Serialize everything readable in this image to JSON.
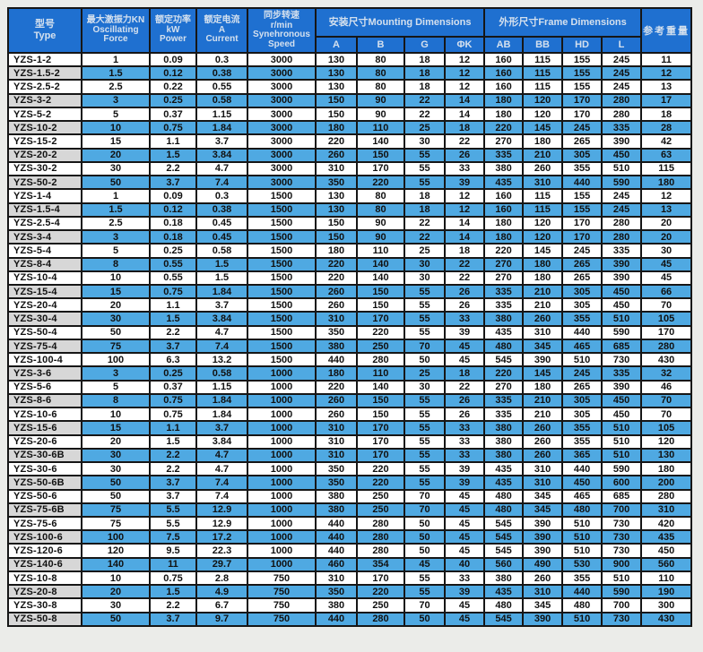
{
  "table": {
    "header": {
      "type": "型号\nType",
      "force": "最大激振力KN\nOscillating\nForce",
      "power": "额定功率\nkW\nPower",
      "current": "额定电流\nA\nCurrent",
      "speed": "同步转速\nr/min\nSynehronous\nSpeed",
      "mounting": "安装尺寸Mounting Dimensions",
      "frame": "外形尺寸Frame Dimensions",
      "weight": "参考重量",
      "mounting_cols": [
        "A",
        "B",
        "G",
        "ΦK"
      ],
      "frame_cols": [
        "AB",
        "BB",
        "HD",
        "L"
      ]
    },
    "rows": [
      [
        "YZS-1-2",
        "1",
        "0.09",
        "0.3",
        "3000",
        "130",
        "80",
        "18",
        "12",
        "160",
        "115",
        "155",
        "245",
        "11"
      ],
      [
        "YZS-1.5-2",
        "1.5",
        "0.12",
        "0.38",
        "3000",
        "130",
        "80",
        "18",
        "12",
        "160",
        "115",
        "155",
        "245",
        "12"
      ],
      [
        "YZS-2.5-2",
        "2.5",
        "0.22",
        "0.55",
        "3000",
        "130",
        "80",
        "18",
        "12",
        "160",
        "115",
        "155",
        "245",
        "13"
      ],
      [
        "YZS-3-2",
        "3",
        "0.25",
        "0.58",
        "3000",
        "150",
        "90",
        "22",
        "14",
        "180",
        "120",
        "170",
        "280",
        "17"
      ],
      [
        "YZS-5-2",
        "5",
        "0.37",
        "1.15",
        "3000",
        "150",
        "90",
        "22",
        "14",
        "180",
        "120",
        "170",
        "280",
        "18"
      ],
      [
        "YZS-10-2",
        "10",
        "0.75",
        "1.84",
        "3000",
        "180",
        "110",
        "25",
        "18",
        "220",
        "145",
        "245",
        "335",
        "28"
      ],
      [
        "YZS-15-2",
        "15",
        "1.1",
        "3.7",
        "3000",
        "220",
        "140",
        "30",
        "22",
        "270",
        "180",
        "265",
        "390",
        "42"
      ],
      [
        "YZS-20-2",
        "20",
        "1.5",
        "3.84",
        "3000",
        "260",
        "150",
        "55",
        "26",
        "335",
        "210",
        "305",
        "450",
        "63"
      ],
      [
        "YZS-30-2",
        "30",
        "2.2",
        "4.7",
        "3000",
        "310",
        "170",
        "55",
        "33",
        "380",
        "260",
        "355",
        "510",
        "115"
      ],
      [
        "YZS-50-2",
        "50",
        "3.7",
        "7.4",
        "3000",
        "350",
        "220",
        "55",
        "39",
        "435",
        "310",
        "440",
        "590",
        "180"
      ],
      [
        "YZS-1-4",
        "1",
        "0.09",
        "0.3",
        "1500",
        "130",
        "80",
        "18",
        "12",
        "160",
        "115",
        "155",
        "245",
        "12"
      ],
      [
        "YZS-1.5-4",
        "1.5",
        "0.12",
        "0.38",
        "1500",
        "130",
        "80",
        "18",
        "12",
        "160",
        "115",
        "155",
        "245",
        "13"
      ],
      [
        "YZS-2.5-4",
        "2.5",
        "0.18",
        "0.45",
        "1500",
        "150",
        "90",
        "22",
        "14",
        "180",
        "120",
        "170",
        "280",
        "20"
      ],
      [
        "YZS-3-4",
        "3",
        "0.18",
        "0.45",
        "1500",
        "150",
        "90",
        "22",
        "14",
        "180",
        "120",
        "170",
        "280",
        "20"
      ],
      [
        "YZS-5-4",
        "5",
        "0.25",
        "0.58",
        "1500",
        "180",
        "110",
        "25",
        "18",
        "220",
        "145",
        "245",
        "335",
        "30"
      ],
      [
        "YZS-8-4",
        "8",
        "0.55",
        "1.5",
        "1500",
        "220",
        "140",
        "30",
        "22",
        "270",
        "180",
        "265",
        "390",
        "45"
      ],
      [
        "YZS-10-4",
        "10",
        "0.55",
        "1.5",
        "1500",
        "220",
        "140",
        "30",
        "22",
        "270",
        "180",
        "265",
        "390",
        "45"
      ],
      [
        "YZS-15-4",
        "15",
        "0.75",
        "1.84",
        "1500",
        "260",
        "150",
        "55",
        "26",
        "335",
        "210",
        "305",
        "450",
        "66"
      ],
      [
        "YZS-20-4",
        "20",
        "1.1",
        "3.7",
        "1500",
        "260",
        "150",
        "55",
        "26",
        "335",
        "210",
        "305",
        "450",
        "70"
      ],
      [
        "YZS-30-4",
        "30",
        "1.5",
        "3.84",
        "1500",
        "310",
        "170",
        "55",
        "33",
        "380",
        "260",
        "355",
        "510",
        "105"
      ],
      [
        "YZS-50-4",
        "50",
        "2.2",
        "4.7",
        "1500",
        "350",
        "220",
        "55",
        "39",
        "435",
        "310",
        "440",
        "590",
        "170"
      ],
      [
        "YZS-75-4",
        "75",
        "3.7",
        "7.4",
        "1500",
        "380",
        "250",
        "70",
        "45",
        "480",
        "345",
        "465",
        "685",
        "280"
      ],
      [
        "YZS-100-4",
        "100",
        "6.3",
        "13.2",
        "1500",
        "440",
        "280",
        "50",
        "45",
        "545",
        "390",
        "510",
        "730",
        "430"
      ],
      [
        "YZS-3-6",
        "3",
        "0.25",
        "0.58",
        "1000",
        "180",
        "110",
        "25",
        "18",
        "220",
        "145",
        "245",
        "335",
        "32"
      ],
      [
        "YZS-5-6",
        "5",
        "0.37",
        "1.15",
        "1000",
        "220",
        "140",
        "30",
        "22",
        "270",
        "180",
        "265",
        "390",
        "46"
      ],
      [
        "YZS-8-6",
        "8",
        "0.75",
        "1.84",
        "1000",
        "260",
        "150",
        "55",
        "26",
        "335",
        "210",
        "305",
        "450",
        "70"
      ],
      [
        "YZS-10-6",
        "10",
        "0.75",
        "1.84",
        "1000",
        "260",
        "150",
        "55",
        "26",
        "335",
        "210",
        "305",
        "450",
        "70"
      ],
      [
        "YZS-15-6",
        "15",
        "1.1",
        "3.7",
        "1000",
        "310",
        "170",
        "55",
        "33",
        "380",
        "260",
        "355",
        "510",
        "105"
      ],
      [
        "YZS-20-6",
        "20",
        "1.5",
        "3.84",
        "1000",
        "310",
        "170",
        "55",
        "33",
        "380",
        "260",
        "355",
        "510",
        "120"
      ],
      [
        "YZS-30-6B",
        "30",
        "2.2",
        "4.7",
        "1000",
        "310",
        "170",
        "55",
        "33",
        "380",
        "260",
        "365",
        "510",
        "130"
      ],
      [
        "YZS-30-6",
        "30",
        "2.2",
        "4.7",
        "1000",
        "350",
        "220",
        "55",
        "39",
        "435",
        "310",
        "440",
        "590",
        "180"
      ],
      [
        "YZS-50-6B",
        "50",
        "3.7",
        "7.4",
        "1000",
        "350",
        "220",
        "55",
        "39",
        "435",
        "310",
        "450",
        "600",
        "200"
      ],
      [
        "YZS-50-6",
        "50",
        "3.7",
        "7.4",
        "1000",
        "380",
        "250",
        "70",
        "45",
        "480",
        "345",
        "465",
        "685",
        "280"
      ],
      [
        "YZS-75-6B",
        "75",
        "5.5",
        "12.9",
        "1000",
        "380",
        "250",
        "70",
        "45",
        "480",
        "345",
        "480",
        "700",
        "310"
      ],
      [
        "YZS-75-6",
        "75",
        "5.5",
        "12.9",
        "1000",
        "440",
        "280",
        "50",
        "45",
        "545",
        "390",
        "510",
        "730",
        "420"
      ],
      [
        "YZS-100-6",
        "100",
        "7.5",
        "17.2",
        "1000",
        "440",
        "280",
        "50",
        "45",
        "545",
        "390",
        "510",
        "730",
        "435"
      ],
      [
        "YZS-120-6",
        "120",
        "9.5",
        "22.3",
        "1000",
        "440",
        "280",
        "50",
        "45",
        "545",
        "390",
        "510",
        "730",
        "450"
      ],
      [
        "YZS-140-6",
        "140",
        "11",
        "29.7",
        "1000",
        "460",
        "354",
        "45",
        "40",
        "560",
        "490",
        "530",
        "900",
        "560"
      ],
      [
        "YZS-10-8",
        "10",
        "0.75",
        "2.8",
        "750",
        "310",
        "170",
        "55",
        "33",
        "380",
        "260",
        "355",
        "510",
        "110"
      ],
      [
        "YZS-20-8",
        "20",
        "1.5",
        "4.9",
        "750",
        "350",
        "220",
        "55",
        "39",
        "435",
        "310",
        "440",
        "590",
        "190"
      ],
      [
        "YZS-30-8",
        "30",
        "2.2",
        "6.7",
        "750",
        "380",
        "250",
        "70",
        "45",
        "480",
        "345",
        "480",
        "700",
        "300"
      ],
      [
        "YZS-50-8",
        "50",
        "3.7",
        "9.7",
        "750",
        "440",
        "280",
        "50",
        "45",
        "545",
        "390",
        "510",
        "730",
        "430"
      ]
    ]
  },
  "colors": {
    "header_blue": "#1f70d0",
    "row_blue": "#4fa9e2",
    "type_gray": "#d7d7d7",
    "border_black": "#161616",
    "page_bg": "#ebece9",
    "header_text": "#d4e0ee"
  }
}
